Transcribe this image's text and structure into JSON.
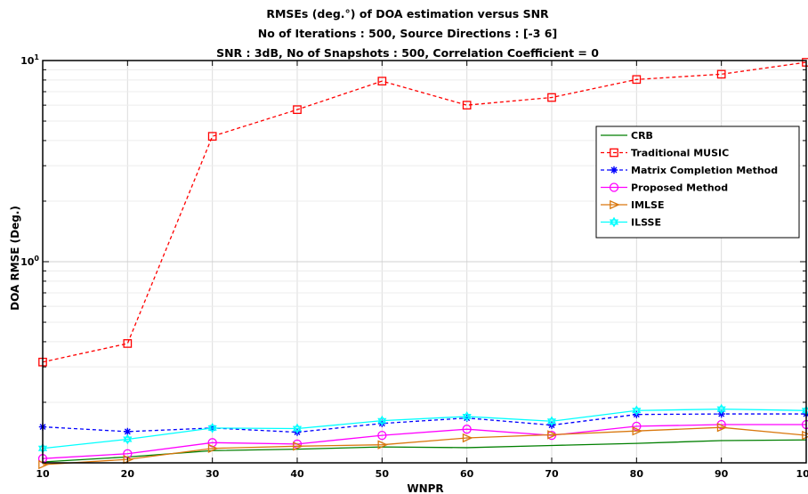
{
  "chart_data": {
    "type": "line",
    "title_lines": [
      "RMSEs (deg.°) of DOA estimation versus SNR",
      "No of Iterations : 500, Source Directions : [-3 6]",
      "SNR : 3dB, No of Snapshots : 500, Correlation Coefficient = 0"
    ],
    "xlabel": "WNPR",
    "ylabel": "DOA RMSE (Deg.)",
    "xlim": [
      10,
      100
    ],
    "ylim": [
      0.1,
      10
    ],
    "yscale": "log",
    "xticks": [
      10,
      20,
      30,
      40,
      50,
      60,
      70,
      80,
      90,
      100
    ],
    "yticks": [
      {
        "base": "10",
        "exp": "0",
        "value": 1
      },
      {
        "base": "10",
        "exp": "1",
        "value": 10
      }
    ],
    "grid": true,
    "legend_position": "top-right",
    "x": [
      10,
      20,
      30,
      40,
      50,
      60,
      70,
      80,
      90,
      100
    ],
    "series": [
      {
        "name": "CRB",
        "color": "#007f00",
        "dash": "solid",
        "marker": "none",
        "values": [
          0.101,
          0.107,
          0.115,
          0.117,
          0.12,
          0.119,
          0.122,
          0.125,
          0.129,
          0.13
        ]
      },
      {
        "name": "Traditional MUSIC",
        "color": "#ff0000",
        "dash": "dashed",
        "marker": "square",
        "values": [
          0.317,
          0.392,
          4.2,
          5.7,
          7.9,
          6.0,
          6.55,
          8.05,
          8.55,
          9.8
        ]
      },
      {
        "name": "Matrix Completion Method",
        "color": "#0000ff",
        "dash": "dashed",
        "marker": "asterisk",
        "values": [
          0.151,
          0.143,
          0.149,
          0.142,
          0.157,
          0.167,
          0.154,
          0.174,
          0.175,
          0.175
        ]
      },
      {
        "name": "Proposed Method",
        "color": "#ff00ff",
        "dash": "solid",
        "marker": "circle",
        "values": [
          0.105,
          0.111,
          0.126,
          0.124,
          0.137,
          0.147,
          0.137,
          0.152,
          0.155,
          0.155
        ]
      },
      {
        "name": "IMLSE",
        "color": "#d9770d",
        "dash": "solid",
        "marker": "triangle-right",
        "values": [
          0.098,
          0.104,
          0.118,
          0.121,
          0.123,
          0.133,
          0.138,
          0.144,
          0.15,
          0.137
        ]
      },
      {
        "name": "ILSSE",
        "color": "#00ffff",
        "dash": "solid",
        "marker": "hexagram",
        "values": [
          0.118,
          0.131,
          0.149,
          0.148,
          0.162,
          0.17,
          0.161,
          0.182,
          0.185,
          0.182
        ]
      }
    ]
  }
}
